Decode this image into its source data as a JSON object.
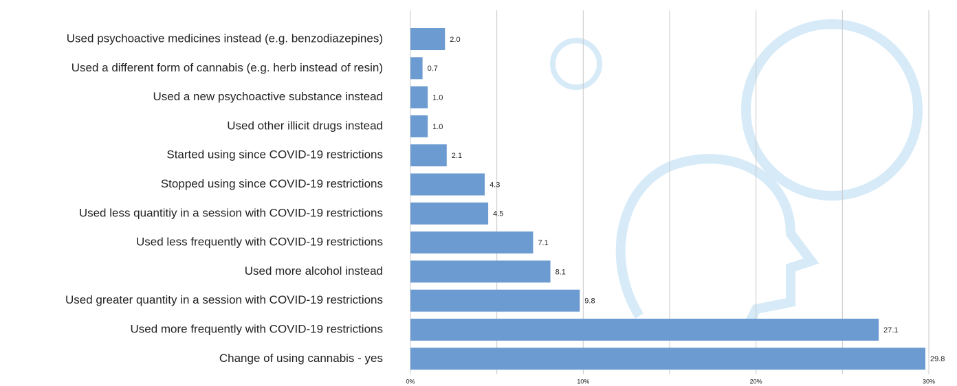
{
  "chart_data": {
    "type": "hbar",
    "categories": [
      "Used psychoactive medicines instead (e.g. benzodiazepines)",
      "Used a different form of cannabis (e.g. herb instead of resin)",
      "Used a new psychoactive substance instead",
      "Used other illicit drugs instead",
      "Started using since COVID-19 restrictions",
      "Stopped using since COVID-19 restrictions",
      "Used less quantitiy in a session with COVID-19 restrictions",
      "Used less frequently with COVID-19 restrictions",
      "Used more alcohol instead",
      "Used greater quantity in a session with COVID-19 restrictions",
      "Used more frequently with COVID-19 restrictions",
      "Change of using cannabis - yes"
    ],
    "values": [
      2.0,
      0.7,
      1.0,
      1.0,
      2.1,
      4.3,
      4.5,
      7.1,
      8.1,
      9.8,
      27.1,
      29.8
    ],
    "value_labels": [
      "2.0",
      "0.7",
      "1.0",
      "1.0",
      "2.1",
      "4.3",
      "4.5",
      "7.1",
      "8.1",
      "9.8",
      "27.1",
      "29.8"
    ],
    "color": "#6b9bd1",
    "xlim": [
      0,
      30
    ],
    "xticks": [
      {
        "value": 0,
        "label": "0%"
      },
      {
        "value": 10,
        "label": "10%"
      },
      {
        "value": 20,
        "label": "20%"
      },
      {
        "value": 30,
        "label": "30%"
      }
    ],
    "xgrid": [
      0,
      5,
      10,
      15,
      20,
      25,
      30
    ]
  }
}
